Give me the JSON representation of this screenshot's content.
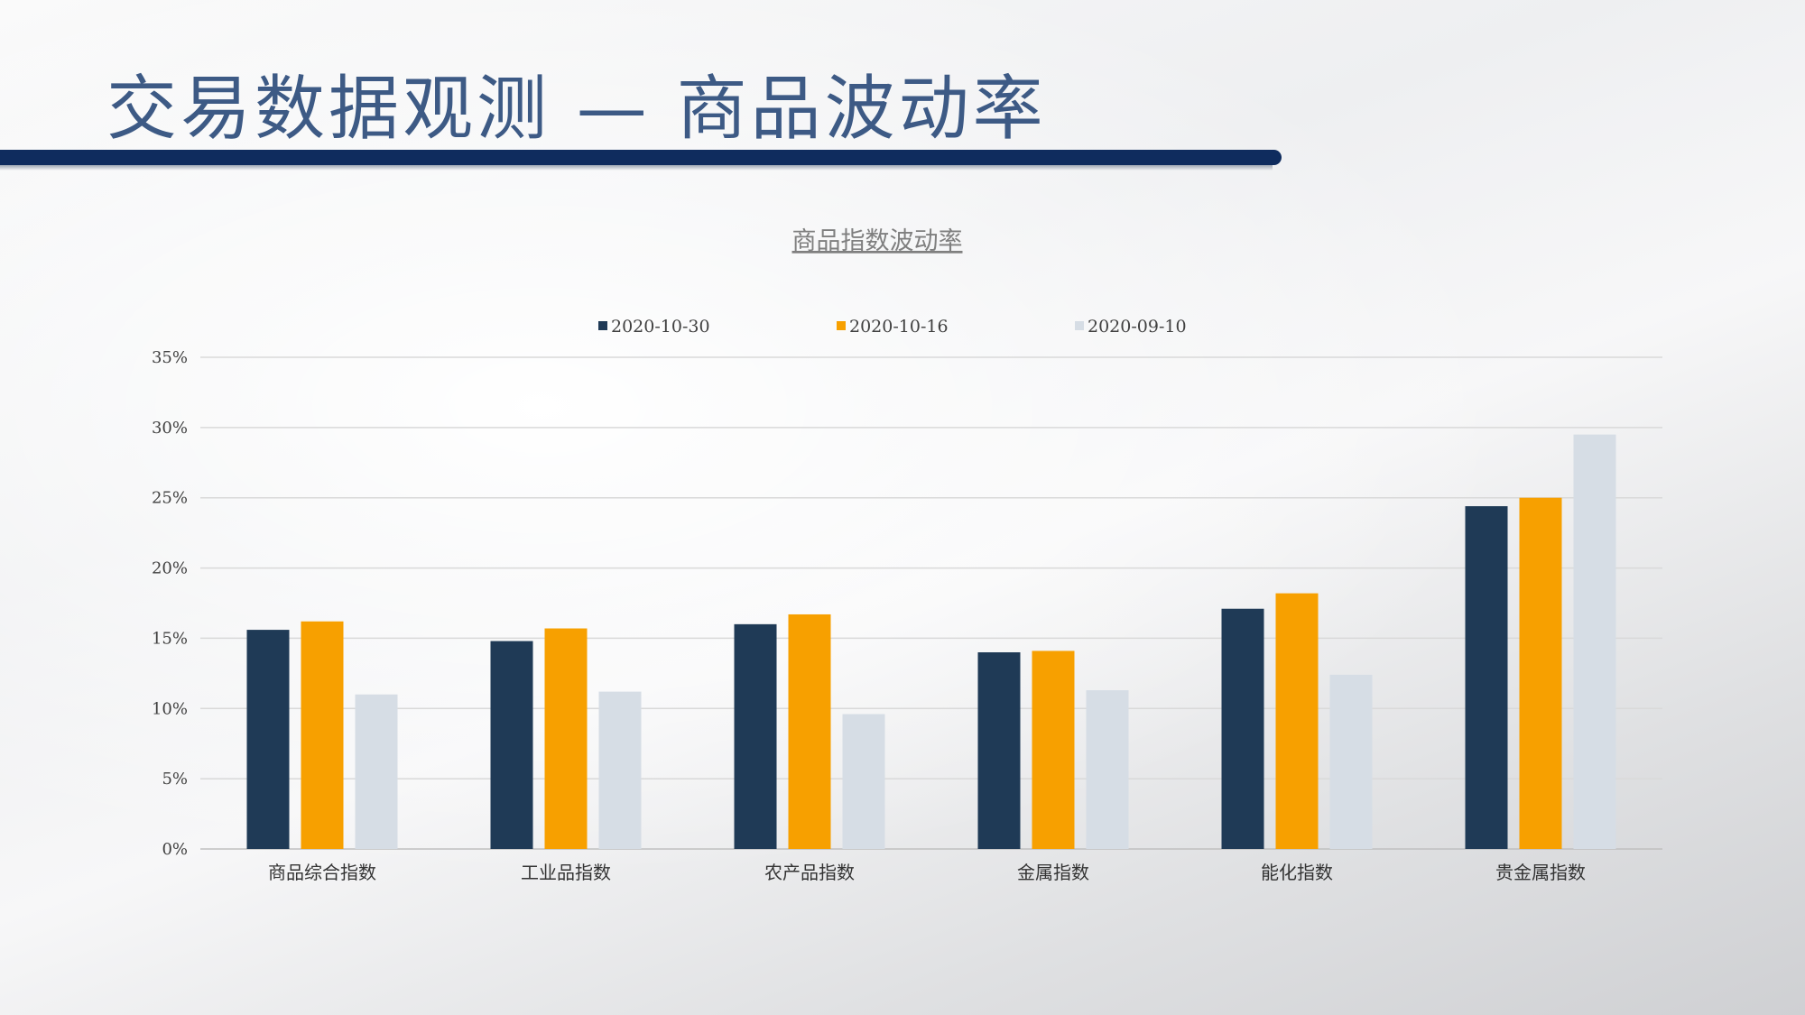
{
  "slide": {
    "title": "交易数据观测 — 商品波动率"
  },
  "colors": {
    "title_bar": "#0f2c5e",
    "title_text": "#3d5a85",
    "series": [
      "#1f3a56",
      "#f7a000",
      "#d6dde5"
    ]
  },
  "chart_data": {
    "type": "bar",
    "title": "商品指数波动率",
    "xlabel": "",
    "ylabel": "",
    "ylim": [
      0,
      35
    ],
    "y_ticks": [
      "0%",
      "5%",
      "10%",
      "15%",
      "20%",
      "25%",
      "30%",
      "35%"
    ],
    "y_unit": "%",
    "grid": true,
    "legend_position": "top",
    "categories": [
      "商品综合指数",
      "工业品指数",
      "农产品指数",
      "金属指数",
      "能化指数",
      "贵金属指数"
    ],
    "series": [
      {
        "name": "2020-10-30",
        "values": [
          15.6,
          14.8,
          16.0,
          14.0,
          17.1,
          24.4
        ]
      },
      {
        "name": "2020-10-16",
        "values": [
          16.2,
          15.7,
          16.7,
          14.1,
          18.2,
          25.0
        ]
      },
      {
        "name": "2020-09-10",
        "values": [
          11.0,
          11.2,
          9.6,
          11.3,
          12.4,
          29.5
        ]
      }
    ]
  }
}
